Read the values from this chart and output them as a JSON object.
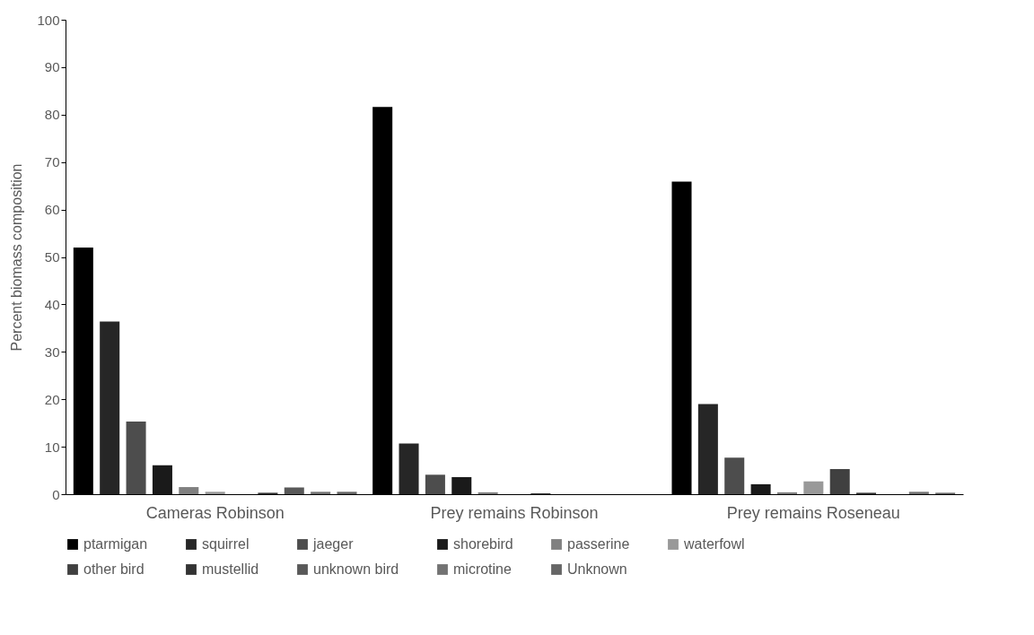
{
  "chart_data": {
    "type": "bar",
    "ylabel": "Percent biomass composition",
    "categories": [
      "Cameras Robinson",
      "Prey remains Robinson",
      "Prey remains Roseneau"
    ],
    "series": [
      {
        "name": "ptarmigan",
        "color": "#000000",
        "values": [
          52.0,
          81.6,
          65.9
        ]
      },
      {
        "name": "squirrel",
        "color": "#262626",
        "values": [
          36.4,
          10.7,
          19.0
        ]
      },
      {
        "name": "jaeger",
        "color": "#4d4d4d",
        "values": [
          15.3,
          4.1,
          7.7
        ]
      },
      {
        "name": "shorebird",
        "color": "#1a1a1a",
        "values": [
          6.1,
          3.6,
          2.1
        ]
      },
      {
        "name": "passerine",
        "color": "#808080",
        "values": [
          1.5,
          0.4,
          0.4
        ]
      },
      {
        "name": "waterfowl",
        "color": "#999999",
        "values": [
          0.5,
          null,
          2.7
        ]
      },
      {
        "name": "other bird",
        "color": "#404040",
        "values": [
          null,
          0.2,
          5.3
        ]
      },
      {
        "name": "mustellid",
        "color": "#333333",
        "values": [
          0.3,
          null,
          0.3
        ]
      },
      {
        "name": "unknown bird",
        "color": "#595959",
        "values": [
          1.4,
          null,
          null
        ]
      },
      {
        "name": "microtine",
        "color": "#737373",
        "values": [
          0.5,
          null,
          0.5
        ]
      },
      {
        "name": "Unknown",
        "color": "#666666",
        "values": [
          0.5,
          null,
          0.3
        ]
      }
    ],
    "ylim": [
      0,
      100
    ],
    "yticks": [
      0,
      10,
      20,
      30,
      40,
      50,
      60,
      70,
      80,
      90,
      100
    ],
    "legend": "bottom"
  }
}
